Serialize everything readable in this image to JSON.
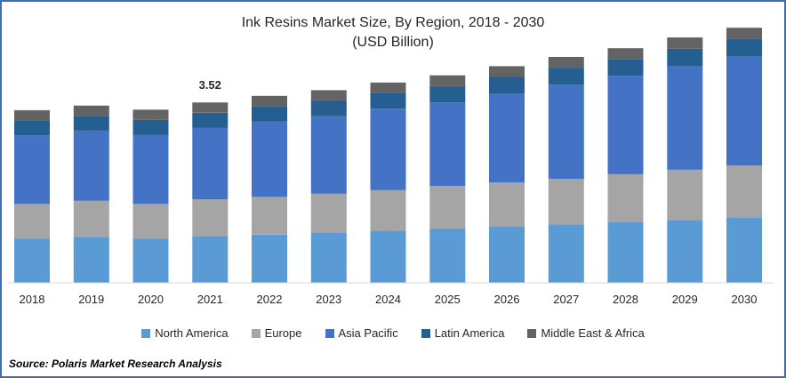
{
  "chart_data": {
    "type": "bar",
    "stacked": true,
    "title": "Ink Resins Market Size, By Region, 2018 - 2030",
    "subtitle": "(USD Billion)",
    "categories": [
      "2018",
      "2019",
      "2020",
      "2021",
      "2022",
      "2023",
      "2024",
      "2025",
      "2026",
      "2027",
      "2028",
      "2029",
      "2030"
    ],
    "series": [
      {
        "name": "North America",
        "color": "#5b9bd5",
        "values": [
          0.86,
          0.9,
          0.86,
          0.91,
          0.94,
          0.98,
          1.02,
          1.06,
          1.1,
          1.14,
          1.18,
          1.23,
          1.28
        ]
      },
      {
        "name": "Europe",
        "color": "#a5a5a5",
        "values": [
          0.68,
          0.7,
          0.68,
          0.72,
          0.74,
          0.76,
          0.79,
          0.83,
          0.86,
          0.89,
          0.94,
          0.98,
          1.01
        ]
      },
      {
        "name": "Asia Pacific",
        "color": "#4472c4",
        "values": [
          1.34,
          1.37,
          1.35,
          1.4,
          1.47,
          1.51,
          1.59,
          1.63,
          1.73,
          1.84,
          1.92,
          2.02,
          2.13
        ]
      },
      {
        "name": "Latin America",
        "color": "#255e91",
        "values": [
          0.29,
          0.29,
          0.29,
          0.29,
          0.3,
          0.31,
          0.31,
          0.32,
          0.33,
          0.33,
          0.33,
          0.34,
          0.34
        ]
      },
      {
        "name": "Middle East & Africa",
        "color": "#636363",
        "values": [
          0.2,
          0.2,
          0.2,
          0.2,
          0.2,
          0.2,
          0.2,
          0.21,
          0.21,
          0.21,
          0.21,
          0.22,
          0.22
        ]
      }
    ],
    "annotations": [
      {
        "category": "2021",
        "text": "3.52"
      }
    ],
    "ylim": [
      0,
      5
    ],
    "grid": false,
    "legend": "bottom"
  },
  "source": "Source: Polaris Market Research Analysis"
}
